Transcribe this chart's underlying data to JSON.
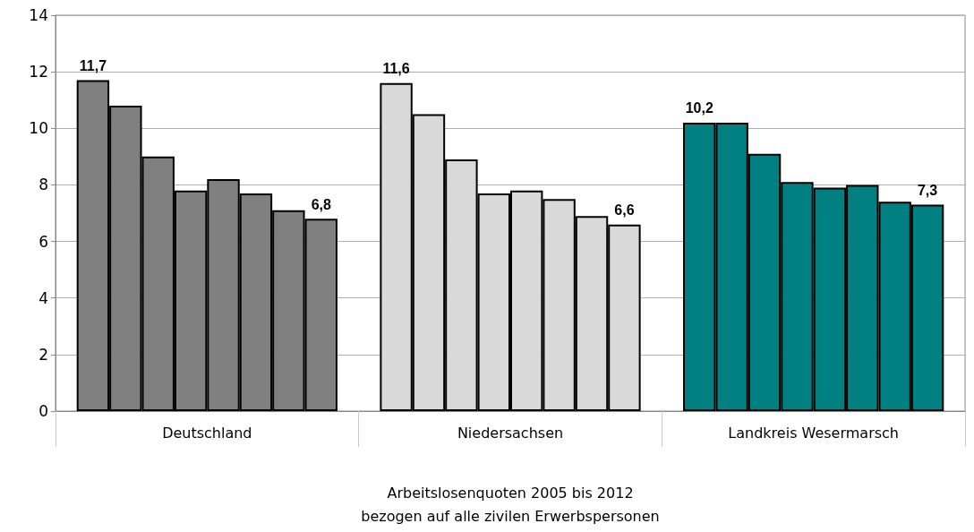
{
  "chart_data": {
    "type": "bar",
    "xlabel": "Arbeitslosenquoten 2005 bis 2012\nbezogen auf alle zivilen Erwerbspersonen",
    "categories": [
      "Deutschland",
      "Niedersachsen",
      "Landkreis Wesermarsch"
    ],
    "series": [
      {
        "colors": [
          "#808080",
          "#d9d9d9",
          "#008080"
        ],
        "values": [
          11.7,
          11.6,
          10.2
        ],
        "value_labels": [
          "11,7",
          "11,6",
          "10,2"
        ]
      },
      {
        "colors": [
          "#808080",
          "#d9d9d9",
          "#008080"
        ],
        "values": [
          10.8,
          10.5,
          10.2
        ]
      },
      {
        "colors": [
          "#808080",
          "#d9d9d9",
          "#008080"
        ],
        "values": [
          9.0,
          8.9,
          9.1
        ]
      },
      {
        "colors": [
          "#808080",
          "#d9d9d9",
          "#008080"
        ],
        "values": [
          7.8,
          7.7,
          8.1
        ]
      },
      {
        "colors": [
          "#808080",
          "#d9d9d9",
          "#008080"
        ],
        "values": [
          8.2,
          7.8,
          7.9
        ]
      },
      {
        "colors": [
          "#808080",
          "#d9d9d9",
          "#008080"
        ],
        "values": [
          7.7,
          7.5,
          8.0
        ]
      },
      {
        "colors": [
          "#808080",
          "#d9d9d9",
          "#008080"
        ],
        "values": [
          7.1,
          6.9,
          7.4
        ]
      },
      {
        "colors": [
          "#808080",
          "#d9d9d9",
          "#008080"
        ],
        "values": [
          6.8,
          6.6,
          7.3
        ],
        "value_labels": [
          "6,8",
          "6,6",
          "7,3"
        ]
      }
    ],
    "ylim": [
      0,
      14
    ],
    "yticks": [
      0,
      2,
      4,
      6,
      8,
      10,
      12,
      14
    ],
    "grid": "y"
  }
}
